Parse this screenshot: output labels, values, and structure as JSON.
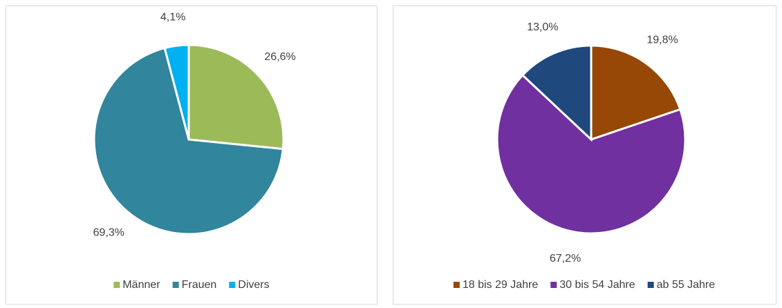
{
  "chart_data": [
    {
      "type": "pie",
      "categories": [
        "Männer",
        "Frauen",
        "Divers"
      ],
      "values": [
        26.6,
        69.3,
        4.1
      ],
      "value_labels": [
        "26,6%",
        "69,3%",
        "4,1%"
      ],
      "colors": [
        "#9bbb59",
        "#31859c",
        "#00b0f0"
      ],
      "legend": "bottom"
    },
    {
      "type": "pie",
      "categories": [
        "18 bis 29 Jahre",
        "30 bis 54 Jahre",
        "ab 55 Jahre"
      ],
      "values": [
        19.8,
        67.2,
        13.0
      ],
      "value_labels": [
        "19,8%",
        "67,2%",
        "13,0%"
      ],
      "colors": [
        "#974706",
        "#7030a0",
        "#1f497d"
      ],
      "legend": "bottom"
    }
  ]
}
